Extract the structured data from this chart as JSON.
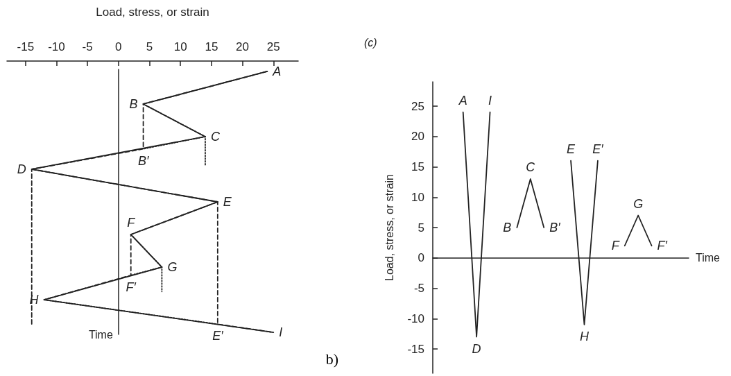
{
  "chart_data": [
    {
      "type": "line",
      "orientation": "horizontal",
      "xlabel": "Load, stress, or strain",
      "ylabel": "Time",
      "xlim": [
        -18,
        29
      ],
      "xticks": [
        -15,
        -10,
        -5,
        0,
        5,
        10,
        15,
        20,
        25
      ],
      "tick_labels": "x",
      "marker": "none",
      "annotations": [
        "b)"
      ],
      "categories": [
        null,
        null,
        null,
        null,
        null,
        null,
        null,
        null,
        null,
        null,
        null,
        null,
        null,
        null,
        null,
        null,
        null,
        null,
        null,
        null,
        null,
        null,
        null,
        null,
        null,
        null,
        null,
        null,
        null,
        null,
        null,
        null,
        null,
        null,
        null,
        null,
        null,
        null,
        null,
        null,
        null,
        null,
        null,
        null,
        null,
        null,
        null,
        null,
        null,
        null,
        null,
        null,
        null,
        null,
        null,
        null,
        null,
        null,
        null,
        null,
        null,
        null,
        null,
        null,
        null
      ],
      "series": [
        {
          "color": "#222222",
          "line_style": "solid",
          "values": [
            24,
            null,
            null,
            null,
            null,
            null,
            null,
            null,
            4,
            null,
            null,
            null,
            null,
            null,
            null,
            null,
            14,
            null,
            null,
            null,
            null,
            null,
            null,
            null,
            -14,
            null,
            null,
            null,
            null,
            null,
            null,
            null,
            16,
            null,
            null,
            null,
            null,
            null,
            null,
            null,
            2,
            null,
            null,
            null,
            null,
            null,
            null,
            null,
            7,
            null,
            null,
            null,
            null,
            null,
            null,
            null,
            -12,
            null,
            null,
            null,
            null,
            null,
            null,
            null,
            25
          ],
          "value_labels": [
            "A",
            null,
            null,
            null,
            null,
            null,
            null,
            null,
            "B",
            null,
            null,
            null,
            null,
            null,
            null,
            null,
            "C",
            null,
            null,
            null,
            null,
            null,
            null,
            null,
            "D",
            null,
            null,
            null,
            null,
            null,
            null,
            null,
            "E",
            null,
            null,
            null,
            null,
            null,
            null,
            null,
            "F",
            null,
            null,
            null,
            null,
            null,
            null,
            null,
            "G",
            null,
            null,
            null,
            null,
            null,
            null,
            null,
            "H",
            null,
            null,
            null,
            null,
            null,
            null,
            null,
            "I"
          ]
        },
        {
          "color": "#222222",
          "line_style": "dashed",
          "values": [
            24,
            null,
            null,
            null,
            null,
            null,
            null,
            null,
            4,
            null,
            null,
            null,
            null,
            null,
            null,
            null,
            null,
            null,
            null,
            4,
            null,
            null,
            null,
            null,
            -14,
            null,
            null,
            null,
            null,
            null,
            null,
            null,
            null,
            null,
            null,
            null,
            null,
            null,
            null,
            null,
            null,
            null,
            null,
            null,
            null,
            null,
            null,
            null,
            null,
            null,
            null,
            null,
            null,
            null,
            null,
            null,
            null,
            null,
            null,
            null,
            null,
            null,
            -14,
            null,
            null
          ],
          "value_labels": [
            null,
            null,
            null,
            null,
            null,
            null,
            null,
            null,
            null,
            null,
            null,
            null,
            null,
            null,
            null,
            null,
            null,
            null,
            null,
            "B′",
            null,
            null,
            null,
            null,
            null,
            null,
            null,
            null,
            null,
            null,
            null,
            null,
            null,
            null,
            null,
            null,
            null,
            null,
            null,
            null,
            null,
            null,
            null,
            null,
            null,
            null,
            null,
            null,
            null,
            null,
            null,
            null,
            null,
            null,
            null,
            null,
            null,
            null,
            null,
            null,
            null,
            null,
            null,
            null,
            null
          ]
        },
        {
          "color": "#222222",
          "line_style": "dashed",
          "values": [
            null,
            null,
            null,
            null,
            null,
            null,
            null,
            null,
            null,
            null,
            null,
            null,
            null,
            null,
            null,
            null,
            null,
            null,
            null,
            null,
            null,
            null,
            null,
            null,
            -14,
            null,
            null,
            null,
            null,
            null,
            null,
            null,
            16,
            null,
            null,
            null,
            null,
            null,
            null,
            null,
            null,
            null,
            null,
            null,
            null,
            null,
            null,
            null,
            null,
            null,
            null,
            null,
            null,
            null,
            null,
            null,
            null,
            null,
            null,
            null,
            null,
            null,
            16,
            null,
            25
          ],
          "value_labels": [
            null,
            null,
            null,
            null,
            null,
            null,
            null,
            null,
            null,
            null,
            null,
            null,
            null,
            null,
            null,
            null,
            null,
            null,
            null,
            null,
            null,
            null,
            null,
            null,
            null,
            null,
            null,
            null,
            null,
            null,
            null,
            null,
            null,
            null,
            null,
            null,
            null,
            null,
            null,
            null,
            null,
            null,
            null,
            null,
            null,
            null,
            null,
            null,
            null,
            null,
            null,
            null,
            null,
            null,
            null,
            null,
            null,
            null,
            null,
            null,
            null,
            null,
            "E′",
            null,
            null
          ]
        },
        {
          "color": "#222222",
          "line_style": "dashed",
          "values": [
            null,
            null,
            null,
            null,
            null,
            null,
            null,
            null,
            null,
            null,
            null,
            null,
            null,
            null,
            null,
            null,
            null,
            null,
            null,
            null,
            null,
            null,
            null,
            null,
            null,
            null,
            null,
            null,
            null,
            null,
            null,
            null,
            16,
            null,
            null,
            null,
            null,
            null,
            null,
            null,
            2,
            null,
            null,
            null,
            null,
            null,
            null,
            null,
            null,
            null,
            2,
            null,
            null,
            null,
            null,
            null,
            -12,
            null,
            null,
            null,
            null,
            null,
            null,
            null,
            null
          ],
          "value_labels": [
            null,
            null,
            null,
            null,
            null,
            null,
            null,
            null,
            null,
            null,
            null,
            null,
            null,
            null,
            null,
            null,
            null,
            null,
            null,
            null,
            null,
            null,
            null,
            null,
            null,
            null,
            null,
            null,
            null,
            null,
            null,
            null,
            null,
            null,
            null,
            null,
            null,
            null,
            null,
            null,
            null,
            null,
            null,
            null,
            null,
            null,
            null,
            null,
            null,
            null,
            "F′",
            null,
            null,
            null,
            null,
            null,
            null,
            null,
            null,
            null,
            null,
            null,
            null,
            null,
            null
          ]
        },
        {
          "color": "#222222",
          "line_style": "dotted",
          "values": [
            null,
            null,
            null,
            null,
            null,
            null,
            null,
            null,
            4,
            null,
            null,
            null,
            null,
            null,
            null,
            null,
            14,
            null,
            null,
            null,
            null,
            null,
            null,
            14,
            null,
            null,
            null,
            null,
            null,
            null,
            null,
            null,
            null,
            null,
            null,
            null,
            null,
            null,
            null,
            null,
            null,
            null,
            null,
            null,
            null,
            null,
            null,
            null,
            null,
            null,
            null,
            null,
            null,
            null,
            null,
            null,
            null,
            null,
            null,
            null,
            null,
            null,
            null,
            null,
            null
          ]
        },
        {
          "color": "#222222",
          "line_style": "dotted",
          "values": [
            null,
            null,
            null,
            null,
            null,
            null,
            null,
            null,
            null,
            null,
            null,
            null,
            null,
            null,
            null,
            null,
            14,
            null,
            null,
            4,
            null,
            null,
            null,
            null,
            null,
            null,
            null,
            null,
            null,
            null,
            null,
            null,
            null,
            null,
            null,
            null,
            null,
            null,
            null,
            null,
            null,
            null,
            null,
            null,
            null,
            null,
            null,
            null,
            null,
            null,
            null,
            null,
            null,
            null,
            null,
            null,
            null,
            null,
            null,
            null,
            null,
            null,
            null,
            null,
            null
          ]
        },
        {
          "color": "#222222",
          "line_style": "dotted",
          "values": [
            null,
            null,
            null,
            null,
            null,
            null,
            null,
            null,
            null,
            null,
            null,
            null,
            null,
            null,
            null,
            null,
            null,
            null,
            null,
            null,
            null,
            null,
            null,
            null,
            null,
            null,
            null,
            null,
            null,
            null,
            null,
            null,
            null,
            null,
            null,
            null,
            null,
            null,
            null,
            null,
            2,
            null,
            null,
            null,
            null,
            null,
            null,
            null,
            7,
            null,
            null,
            null,
            null,
            null,
            7,
            null,
            null,
            null,
            null,
            null,
            null,
            null,
            null,
            null,
            null
          ]
        },
        {
          "color": "#222222",
          "line_style": "dotted",
          "values": [
            null,
            null,
            null,
            null,
            null,
            null,
            null,
            null,
            null,
            null,
            null,
            null,
            null,
            null,
            null,
            null,
            null,
            null,
            null,
            null,
            null,
            null,
            null,
            null,
            null,
            null,
            null,
            null,
            null,
            null,
            null,
            null,
            null,
            null,
            null,
            null,
            null,
            null,
            null,
            null,
            null,
            null,
            null,
            null,
            null,
            null,
            null,
            null,
            7,
            null,
            2,
            null,
            null,
            null,
            null,
            null,
            null,
            null,
            null,
            null,
            null,
            null,
            null,
            null,
            null
          ]
        },
        {
          "color": "#222222",
          "line_style": "dotted",
          "values": [
            null,
            null,
            null,
            null,
            null,
            null,
            null,
            null,
            null,
            null,
            null,
            null,
            null,
            null,
            null,
            null,
            null,
            null,
            null,
            null,
            null,
            null,
            null,
            null,
            null,
            null,
            null,
            null,
            null,
            null,
            null,
            null,
            null,
            null,
            null,
            null,
            null,
            null,
            null,
            null,
            null,
            null,
            null,
            null,
            null,
            null,
            null,
            null,
            null,
            null,
            null,
            null,
            null,
            null,
            null,
            null,
            -12,
            null,
            null,
            null,
            null,
            null,
            16,
            null,
            null
          ]
        }
      ]
    },
    {
      "type": "line",
      "title": "(c)",
      "xlabel": "Time",
      "ylabel": "Load, stress, or strain",
      "ylim": [
        -19,
        29
      ],
      "yticks": [
        -15,
        -10,
        -5,
        0,
        5,
        10,
        15,
        20,
        25
      ],
      "tick_labels": "y",
      "marker": "none",
      "categories": [
        null,
        null,
        null,
        null,
        null,
        null,
        null,
        null,
        null,
        null,
        null,
        null,
        null,
        null,
        null,
        null,
        null,
        null,
        null,
        null,
        null,
        null,
        null,
        null,
        null,
        null,
        null,
        null,
        null,
        null,
        null,
        null,
        null,
        null,
        null,
        null,
        null,
        null
      ],
      "series": [
        {
          "color": "#222222",
          "line_style": "solid",
          "values": [
            null,
            null,
            null,
            null,
            24,
            null,
            -13,
            null,
            24,
            null,
            null,
            null,
            null,
            null,
            null,
            null,
            null,
            null,
            null,
            null,
            null,
            null,
            null,
            null,
            null,
            null,
            null,
            null,
            null,
            null,
            null,
            null,
            null,
            null,
            null,
            null,
            null,
            null
          ],
          "value_labels": [
            null,
            null,
            null,
            null,
            "A",
            null,
            "D",
            null,
            "I",
            null,
            null,
            null,
            null,
            null,
            null,
            null,
            null,
            null,
            null,
            null,
            null,
            null,
            null,
            null,
            null,
            null,
            null,
            null,
            null,
            null,
            null,
            null,
            null,
            null,
            null,
            null,
            null,
            null
          ]
        },
        {
          "color": "#222222",
          "line_style": "solid",
          "values": [
            null,
            null,
            null,
            null,
            null,
            null,
            null,
            null,
            null,
            null,
            null,
            null,
            5,
            null,
            13,
            null,
            5,
            null,
            null,
            null,
            null,
            null,
            null,
            null,
            null,
            null,
            null,
            null,
            null,
            null,
            null,
            null,
            null,
            null,
            null,
            null,
            null,
            null
          ],
          "value_labels": [
            null,
            null,
            null,
            null,
            null,
            null,
            null,
            null,
            null,
            null,
            null,
            null,
            "B",
            null,
            "C",
            null,
            "B′",
            null,
            null,
            null,
            null,
            null,
            null,
            null,
            null,
            null,
            null,
            null,
            null,
            null,
            null,
            null,
            null,
            null,
            null,
            null,
            null,
            null
          ]
        },
        {
          "color": "#222222",
          "line_style": "solid",
          "values": [
            null,
            null,
            null,
            null,
            null,
            null,
            null,
            null,
            null,
            null,
            null,
            null,
            null,
            null,
            null,
            null,
            null,
            null,
            null,
            null,
            16,
            null,
            -11,
            null,
            16,
            null,
            null,
            null,
            null,
            null,
            null,
            null,
            null,
            null,
            null,
            null,
            null,
            null
          ],
          "value_labels": [
            null,
            null,
            null,
            null,
            null,
            null,
            null,
            null,
            null,
            null,
            null,
            null,
            null,
            null,
            null,
            null,
            null,
            null,
            null,
            null,
            "E",
            null,
            "H",
            null,
            "E′",
            null,
            null,
            null,
            null,
            null,
            null,
            null,
            null,
            null,
            null,
            null,
            null,
            null
          ]
        },
        {
          "color": "#222222",
          "line_style": "solid",
          "values": [
            null,
            null,
            null,
            null,
            null,
            null,
            null,
            null,
            null,
            null,
            null,
            null,
            null,
            null,
            null,
            null,
            null,
            null,
            null,
            null,
            null,
            null,
            null,
            null,
            null,
            null,
            null,
            null,
            2,
            null,
            7,
            null,
            2,
            null,
            null,
            null,
            null,
            null
          ],
          "value_labels": [
            null,
            null,
            null,
            null,
            null,
            null,
            null,
            null,
            null,
            null,
            null,
            null,
            null,
            null,
            null,
            null,
            null,
            null,
            null,
            null,
            null,
            null,
            null,
            null,
            null,
            null,
            null,
            null,
            "F",
            null,
            "G",
            null,
            "F′",
            null,
            null,
            null,
            null,
            null
          ]
        }
      ]
    }
  ]
}
